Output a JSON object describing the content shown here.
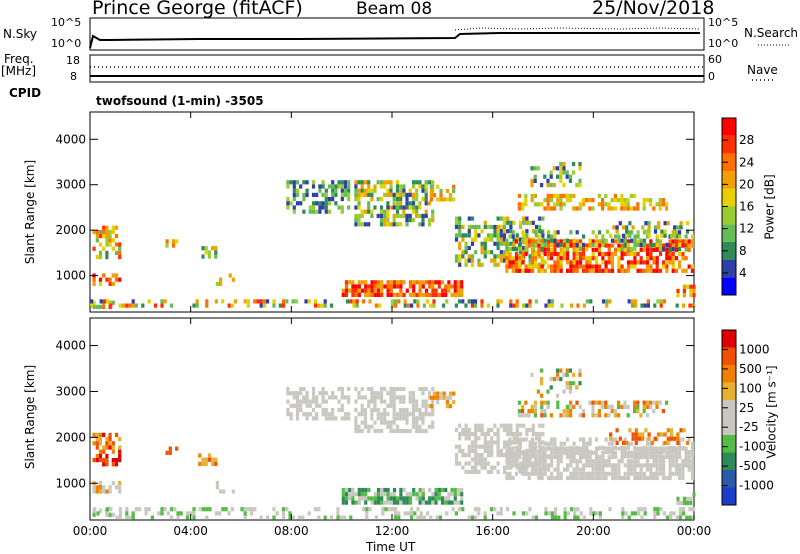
{
  "header": {
    "station": "Prince George (fitACF)",
    "beam": "Beam 08",
    "date": "25/Nov/2018"
  },
  "strip": {
    "nsky_label": "N.Sky",
    "nsky_ticks": [
      "10^5",
      "10^0"
    ],
    "nsearch_label": "N.Search",
    "nsearch_ticks": [
      "10^5",
      "10^0"
    ],
    "freq_label": "Freq.",
    "freq_unit": "[MHz]",
    "freq_ticks": [
      "18",
      "8"
    ],
    "nave_label": "Nave",
    "nave_ticks": [
      "60",
      "0"
    ],
    "cpid_label": "CPID",
    "cpid_value": "twofsound (1-min) -3505"
  },
  "chart_data": [
    {
      "type": "heatmap",
      "name": "power",
      "ylabel": "Slant Range [km]",
      "yticks": [
        "4000",
        "3000",
        "2000",
        "1000"
      ],
      "ylim": [
        200,
        4600
      ],
      "colorbar_label": "Power [dB]",
      "colorbar_ticks": [
        "28",
        "24",
        "20",
        "16",
        "12",
        "8",
        "4"
      ],
      "colorbar_colors": [
        "#0000ff",
        "#2f3fa8",
        "#2e8b57",
        "#66bb55",
        "#9acd32",
        "#e8d000",
        "#f0a000",
        "#ff7000",
        "#ff3000",
        "#ff0000"
      ]
    },
    {
      "type": "heatmap",
      "name": "velocity",
      "ylabel": "Slant Range [km]",
      "yticks": [
        "4000",
        "3000",
        "2000",
        "1000"
      ],
      "ylim": [
        200,
        4600
      ],
      "colorbar_label": "Velocity [m s⁻¹]",
      "colorbar_ticks": [
        "1000",
        "500",
        "100",
        "25",
        "-25",
        "-100",
        "-500",
        "-1000"
      ],
      "colorbar_colors": [
        "#1a3ec8",
        "#2a5aa8",
        "#2e8b57",
        "#55bb44",
        "#c8c8c0",
        "#c8c8c0",
        "#e8b030",
        "#f08000",
        "#f05000",
        "#e00000"
      ]
    }
  ],
  "time_axis": {
    "xlabel": "Time UT",
    "ticks": [
      "00:00",
      "04:00",
      "08:00",
      "12:00",
      "16:00",
      "20:00",
      "00:00"
    ],
    "xlim_hours": [
      0,
      24
    ]
  }
}
